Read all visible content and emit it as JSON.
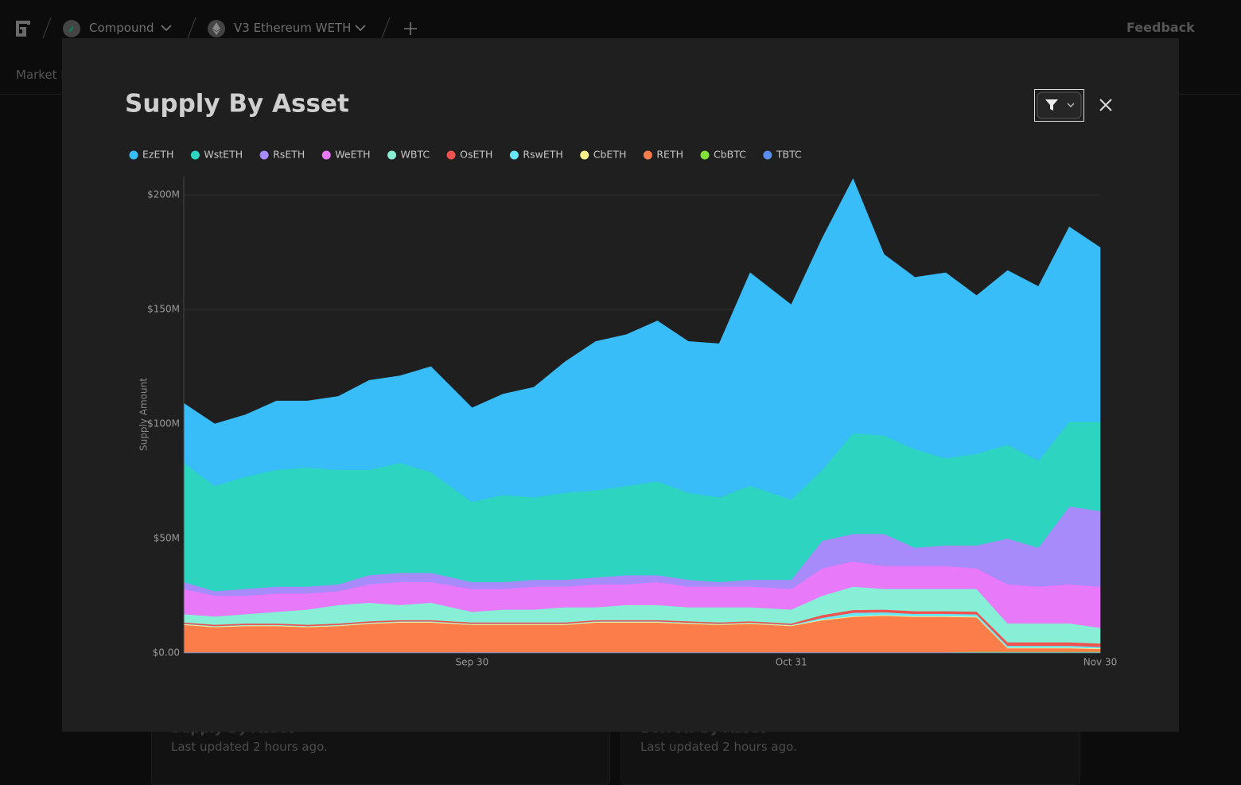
{
  "nav": {
    "breadcrumbs": [
      "Compound",
      "V3 Ethereum WETH"
    ],
    "feedback": "Feedback",
    "tab": "Market H"
  },
  "background_cards": [
    {
      "title": "Supply By Asset",
      "updated": "Last updated 2 hours ago."
    },
    {
      "title": "Borrow By Asset",
      "updated": "Last updated 2 hours ago."
    }
  ],
  "chart_data": {
    "type": "stacked-area",
    "title": "Supply By Asset",
    "y_label": "Supply Amount",
    "x": [
      "Sep 2",
      "Sep 5",
      "Sep 8",
      "Sep 11",
      "Sep 14",
      "Sep 17",
      "Sep 20",
      "Sep 23",
      "Sep 26",
      "Sep 30",
      "Oct 3",
      "Oct 6",
      "Oct 9",
      "Oct 12",
      "Oct 15",
      "Oct 18",
      "Oct 21",
      "Oct 24",
      "Oct 27",
      "Oct 31",
      "Nov 3",
      "Nov 6",
      "Nov 9",
      "Nov 12",
      "Nov 15",
      "Nov 18",
      "Nov 21",
      "Nov 24",
      "Nov 27",
      "Nov 30"
    ],
    "xticks": [
      "Sep 30",
      "Oct 31",
      "Nov 30"
    ],
    "ylim": [
      0,
      208
    ],
    "yticks": [
      {
        "value": 0,
        "label": "$0.00"
      },
      {
        "value": 50,
        "label": "$50M"
      },
      {
        "value": 100,
        "label": "$100M"
      },
      {
        "value": 150,
        "label": "$150M"
      },
      {
        "value": 200,
        "label": "$200M"
      }
    ],
    "grid": true,
    "series": [
      {
        "name": "EzETH",
        "color": "#38bdf8",
        "values": [
          26,
          27,
          27,
          30,
          29,
          32,
          39,
          38,
          46,
          41,
          44,
          48,
          57,
          65,
          66,
          70,
          66,
          67,
          93,
          85,
          101,
          111,
          79,
          75,
          81,
          69,
          76,
          76,
          85,
          76
        ]
      },
      {
        "name": "WstETH",
        "color": "#2dd4bf",
        "values": [
          52,
          46,
          49,
          51,
          52,
          50,
          46,
          48,
          44,
          35,
          38,
          36,
          38,
          38,
          39,
          41,
          38,
          37,
          41,
          35,
          31,
          44,
          43,
          43,
          38,
          40,
          41,
          38,
          37,
          39
        ]
      },
      {
        "name": "RsETH",
        "color": "#a78bfa",
        "values": [
          3,
          2,
          3,
          3,
          3,
          3,
          4,
          4,
          4,
          3,
          3,
          3,
          3,
          3,
          4,
          3,
          3,
          2,
          3,
          4,
          12,
          12,
          14,
          8,
          9,
          10,
          20,
          17,
          34,
          33
        ]
      },
      {
        "name": "WeETH",
        "color": "#e879f9",
        "values": [
          11,
          9,
          8,
          8,
          7,
          6,
          8,
          10,
          9,
          10,
          9,
          10,
          9,
          10,
          9,
          10,
          9,
          9,
          9,
          9,
          12,
          11,
          10,
          10,
          10,
          9,
          17,
          16,
          17,
          18
        ]
      },
      {
        "name": "WBTC",
        "color": "#86efd6",
        "values": [
          3.6,
          3.6,
          4.1,
          5.1,
          6.6,
          8.1,
          8.1,
          6.6,
          7.6,
          4.6,
          5.6,
          5.6,
          6.6,
          5.6,
          6.6,
          6.6,
          6.1,
          6.6,
          6.1,
          6.1,
          8.4,
          10.2,
          9,
          9.7,
          9.7,
          9.9,
          8.3,
          8.3,
          8.3,
          6.8
        ]
      },
      {
        "name": "OsETH",
        "color": "#ef5350",
        "values": [
          0.6,
          0.6,
          0.6,
          0.6,
          0.6,
          0.6,
          0.6,
          0.6,
          0.6,
          0.6,
          0.6,
          0.6,
          0.6,
          0.6,
          0.6,
          0.6,
          0.6,
          0.6,
          0.6,
          0.6,
          1.2,
          1.2,
          1.2,
          1.2,
          1.2,
          1.2,
          1.5,
          1.5,
          1.5,
          1.5
        ]
      },
      {
        "name": "RswETH",
        "color": "#67e8f9",
        "values": [
          0.2,
          0.2,
          0.2,
          0.2,
          0.2,
          0.2,
          0.2,
          0.2,
          0.2,
          0.2,
          0.2,
          0.2,
          0.2,
          0.2,
          0.2,
          0.2,
          0.2,
          0.2,
          0.2,
          0.2,
          0.8,
          1.5,
          1.2,
          1,
          1,
          1,
          0.8,
          0.8,
          0.8,
          0.6
        ]
      },
      {
        "name": "CbETH",
        "color": "#fef08a",
        "values": [
          0.3,
          0.3,
          0.3,
          0.3,
          0.3,
          0.3,
          0.3,
          0.3,
          0.3,
          0.3,
          0.3,
          0.3,
          0.3,
          0.3,
          0.3,
          0.3,
          0.3,
          0.3,
          0.3,
          0.3,
          0.3,
          0.3,
          0.3,
          0.3,
          0.3,
          0.3,
          0.3,
          0.3,
          0.3,
          0.3
        ]
      },
      {
        "name": "RETH",
        "color": "#fb7d4a",
        "values": [
          12,
          11,
          11.5,
          11.5,
          11,
          11.5,
          12.5,
          13,
          13,
          12,
          12,
          12,
          12,
          13,
          13,
          13,
          12.5,
          12,
          12.5,
          11.5,
          14,
          15.5,
          16,
          15.5,
          15.5,
          15,
          1.5,
          1.5,
          1.5,
          1.2
        ]
      },
      {
        "name": "CbBTC",
        "color": "#84e13c",
        "values": [
          0,
          0,
          0,
          0,
          0,
          0,
          0,
          0,
          0,
          0,
          0,
          0,
          0,
          0,
          0,
          0,
          0,
          0,
          0,
          0,
          0,
          0,
          0,
          0,
          0,
          0.3,
          0.3,
          0.3,
          0.3,
          0.3
        ]
      },
      {
        "name": "TBTC",
        "color": "#5b8def",
        "values": [
          0.3,
          0.3,
          0.3,
          0.3,
          0.3,
          0.3,
          0.3,
          0.3,
          0.3,
          0.3,
          0.3,
          0.3,
          0.3,
          0.3,
          0.3,
          0.3,
          0.3,
          0.3,
          0.3,
          0.3,
          0.3,
          0.3,
          0.3,
          0.3,
          0.3,
          0.3,
          0.3,
          0.3,
          0.3,
          0.3
        ]
      }
    ]
  }
}
